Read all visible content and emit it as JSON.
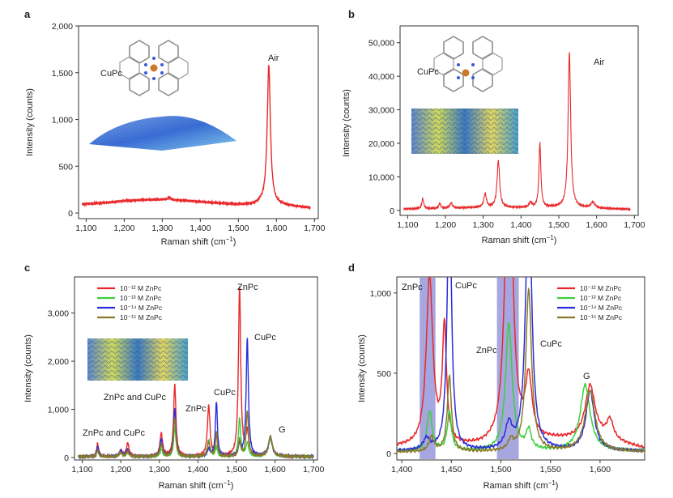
{
  "chart_data": [
    {
      "panel": "a",
      "type": "line",
      "xlabel": "Raman shift (cm⁻¹)",
      "ylabel": "Intensity (counts)",
      "xlim": [
        1080,
        1710
      ],
      "ylim": [
        -60,
        2000
      ],
      "xticks": [
        1100,
        1200,
        1300,
        1400,
        1500,
        1600,
        1700
      ],
      "xtick_labels": [
        "1,100",
        "1,200",
        "1,300",
        "1,400",
        "1,500",
        "1,600",
        "1,700"
      ],
      "yticks": [
        0,
        500,
        1000,
        1500,
        2000
      ],
      "ytick_labels": [
        "0",
        "500",
        "1,000",
        "1,500",
        "2,000"
      ],
      "annotations": [
        "Air",
        "CuPc"
      ],
      "series": [
        {
          "color": "#e8282b",
          "baseline": [
            [
              1090,
              95
            ],
            [
              1150,
              110
            ],
            [
              1200,
              130
            ],
            [
              1250,
              140
            ],
            [
              1300,
              145
            ],
            [
              1350,
              135
            ],
            [
              1400,
              120
            ],
            [
              1450,
              105
            ],
            [
              1500,
              90
            ],
            [
              1540,
              90
            ],
            [
              1560,
              110
            ],
            [
              1600,
              90
            ],
            [
              1650,
              70
            ],
            [
              1690,
              55
            ]
          ],
          "peaks": [
            [
              1580,
              1480,
              5
            ],
            [
              1318,
              25,
              4
            ]
          ]
        }
      ]
    },
    {
      "panel": "b",
      "type": "line",
      "xlabel": "Raman shift (cm⁻¹)",
      "ylabel": "Intensity (counts)",
      "xlim": [
        1080,
        1710
      ],
      "ylim": [
        -1500,
        55000
      ],
      "xticks": [
        1100,
        1200,
        1300,
        1400,
        1500,
        1600,
        1700
      ],
      "xtick_labels": [
        "1,100",
        "1,200",
        "1,300",
        "1,400",
        "1,500",
        "1,600",
        "1,700"
      ],
      "yticks": [
        0,
        10000,
        20000,
        30000,
        40000,
        50000
      ],
      "ytick_labels": [
        "0",
        "10,000",
        "20,000",
        "30,000",
        "40,000",
        "50,000"
      ],
      "annotations": [
        "Air",
        "CuPc"
      ],
      "series": [
        {
          "color": "#e8282b",
          "baseline": [
            [
              1090,
              400
            ],
            [
              1200,
              600
            ],
            [
              1300,
              900
            ],
            [
              1400,
              800
            ],
            [
              1500,
              900
            ],
            [
              1600,
              600
            ],
            [
              1690,
              300
            ]
          ],
          "peaks": [
            [
              1140,
              3000,
              3
            ],
            [
              1185,
              1500,
              3
            ],
            [
              1215,
              1500,
              4
            ],
            [
              1305,
              4000,
              4
            ],
            [
              1340,
              14000,
              4
            ],
            [
              1425,
              1500,
              4
            ],
            [
              1450,
              19000,
              3
            ],
            [
              1528,
              46500,
              4
            ],
            [
              1590,
              1800,
              6
            ]
          ]
        }
      ]
    },
    {
      "panel": "c",
      "type": "line",
      "xlabel": "Raman shift (cm⁻¹)",
      "ylabel": "Intensity (counts)",
      "xlim": [
        1080,
        1710
      ],
      "ylim": [
        -50,
        3750
      ],
      "xticks": [
        1100,
        1200,
        1300,
        1400,
        1500,
        1600,
        1700
      ],
      "xtick_labels": [
        "1,100",
        "1,200",
        "1,300",
        "1,400",
        "1,500",
        "1,600",
        "1,700"
      ],
      "yticks": [
        0,
        1000,
        2000,
        3000
      ],
      "ytick_labels": [
        "0",
        "1,000",
        "2,000",
        "3,000"
      ],
      "annotations": [
        "ZnPc and CuPc",
        "ZnPc and CuPc",
        "ZnPc",
        "CuPc",
        "ZnPc",
        "CuPc",
        "G"
      ],
      "legend_position": "top-left",
      "series": [
        {
          "name": "10⁻¹² M ZnPc",
          "color": "#e8282b",
          "baseline": [
            [
              1090,
              20
            ],
            [
              1700,
              20
            ]
          ],
          "peaks": [
            [
              1140,
              270,
              3
            ],
            [
              1200,
              120,
              4
            ],
            [
              1218,
              280,
              4
            ],
            [
              1305,
              480,
              4
            ],
            [
              1340,
              1500,
              3.5
            ],
            [
              1428,
              1050,
              4
            ],
            [
              1448,
              400,
              3
            ],
            [
              1508,
              3550,
              3.5
            ],
            [
              1528,
              500,
              4
            ],
            [
              1588,
              380,
              6
            ]
          ]
        },
        {
          "name": "10⁻¹³ M ZnPc",
          "color": "#3ccf3c",
          "baseline": [
            [
              1090,
              20
            ],
            [
              1700,
              20
            ]
          ],
          "peaks": [
            [
              1140,
              120,
              3
            ],
            [
              1200,
              100,
              4
            ],
            [
              1218,
              90,
              4
            ],
            [
              1305,
              150,
              4
            ],
            [
              1340,
              600,
              3.5
            ],
            [
              1428,
              350,
              4
            ],
            [
              1448,
              200,
              3
            ],
            [
              1508,
              800,
              3.5
            ],
            [
              1528,
              280,
              4
            ],
            [
              1588,
              380,
              6
            ]
          ]
        },
        {
          "name": "10⁻¹⁴ M ZnPc",
          "color": "#2a2ed8",
          "baseline": [
            [
              1090,
              20
            ],
            [
              1700,
              20
            ]
          ],
          "peaks": [
            [
              1140,
              200,
              3
            ],
            [
              1200,
              120,
              4
            ],
            [
              1218,
              150,
              4
            ],
            [
              1305,
              350,
              4
            ],
            [
              1340,
              1000,
              3.5
            ],
            [
              1428,
              150,
              4
            ],
            [
              1448,
              1150,
              3
            ],
            [
              1508,
              250,
              3.5
            ],
            [
              1528,
              2450,
              3.5
            ],
            [
              1588,
              400,
              6
            ]
          ]
        },
        {
          "name": "10⁻¹⁵ M ZnPc",
          "color": "#8a7a28",
          "baseline": [
            [
              1090,
              20
            ],
            [
              1700,
              20
            ]
          ],
          "peaks": [
            [
              1140,
              130,
              3
            ],
            [
              1200,
              80,
              4
            ],
            [
              1218,
              100,
              4
            ],
            [
              1305,
              250,
              4
            ],
            [
              1340,
              800,
              3.5
            ],
            [
              1428,
              300,
              4
            ],
            [
              1448,
              500,
              3
            ],
            [
              1508,
              350,
              3.5
            ],
            [
              1528,
              950,
              3.5
            ],
            [
              1588,
              420,
              6
            ]
          ]
        }
      ]
    },
    {
      "panel": "d",
      "type": "line",
      "xlabel": "Raman shift (cm⁻¹)",
      "ylabel": "Intensity (counts)",
      "xlim": [
        1395,
        1645
      ],
      "ylim": [
        -40,
        1100
      ],
      "xticks": [
        1400,
        1450,
        1500,
        1550,
        1600
      ],
      "xtick_labels": [
        "1,400",
        "1,450",
        "1,500",
        "1,550",
        "1,600"
      ],
      "yticks": [
        0,
        500,
        1000
      ],
      "ytick_labels": [
        "0",
        "500",
        "1,000"
      ],
      "annotations": [
        "ZnPc",
        "CuPc",
        "ZnPc",
        "CuPc",
        "G"
      ],
      "highlight_bands": [
        [
          1418,
          1434
        ],
        [
          1496,
          1518
        ]
      ],
      "legend_position": "top-right",
      "series": [
        {
          "name": "10⁻¹² M ZnPc",
          "color": "#e8282b",
          "baseline": [
            [
              1395,
              40
            ],
            [
              1480,
              40
            ],
            [
              1550,
              80
            ],
            [
              1600,
              90
            ],
            [
              1645,
              30
            ]
          ],
          "peaks": [
            [
              1428,
              1050,
              4
            ],
            [
              1443,
              720,
              2.5
            ],
            [
              1508,
              2200,
              4
            ],
            [
              1528,
              370,
              4
            ],
            [
              1590,
              330,
              6
            ],
            [
              1610,
              120,
              4
            ]
          ]
        },
        {
          "name": "10⁻¹³ M ZnPc",
          "color": "#3ccf3c",
          "baseline": [
            [
              1395,
              15
            ],
            [
              1645,
              15
            ]
          ],
          "peaks": [
            [
              1428,
              250,
              3
            ],
            [
              1448,
              240,
              2.5
            ],
            [
              1508,
              790,
              4
            ],
            [
              1528,
              120,
              3
            ],
            [
              1585,
              410,
              6
            ]
          ]
        },
        {
          "name": "10⁻¹⁴ M ZnPc",
          "color": "#2a2ed8",
          "baseline": [
            [
              1395,
              15
            ],
            [
              1645,
              15
            ]
          ],
          "peaks": [
            [
              1425,
              70,
              4
            ],
            [
              1448,
              1700,
              2.5
            ],
            [
              1508,
              150,
              4
            ],
            [
              1528,
              1700,
              3.5
            ],
            [
              1590,
              370,
              5
            ]
          ]
        },
        {
          "name": "10⁻¹⁵ M ZnPc",
          "color": "#8a7a28",
          "baseline": [
            [
              1395,
              10
            ],
            [
              1645,
              10
            ]
          ],
          "peaks": [
            [
              1430,
              90,
              3
            ],
            [
              1448,
              470,
              2.5
            ],
            [
              1510,
              60,
              3
            ],
            [
              1528,
              1010,
              3.5
            ],
            [
              1590,
              380,
              6
            ]
          ]
        }
      ]
    }
  ]
}
